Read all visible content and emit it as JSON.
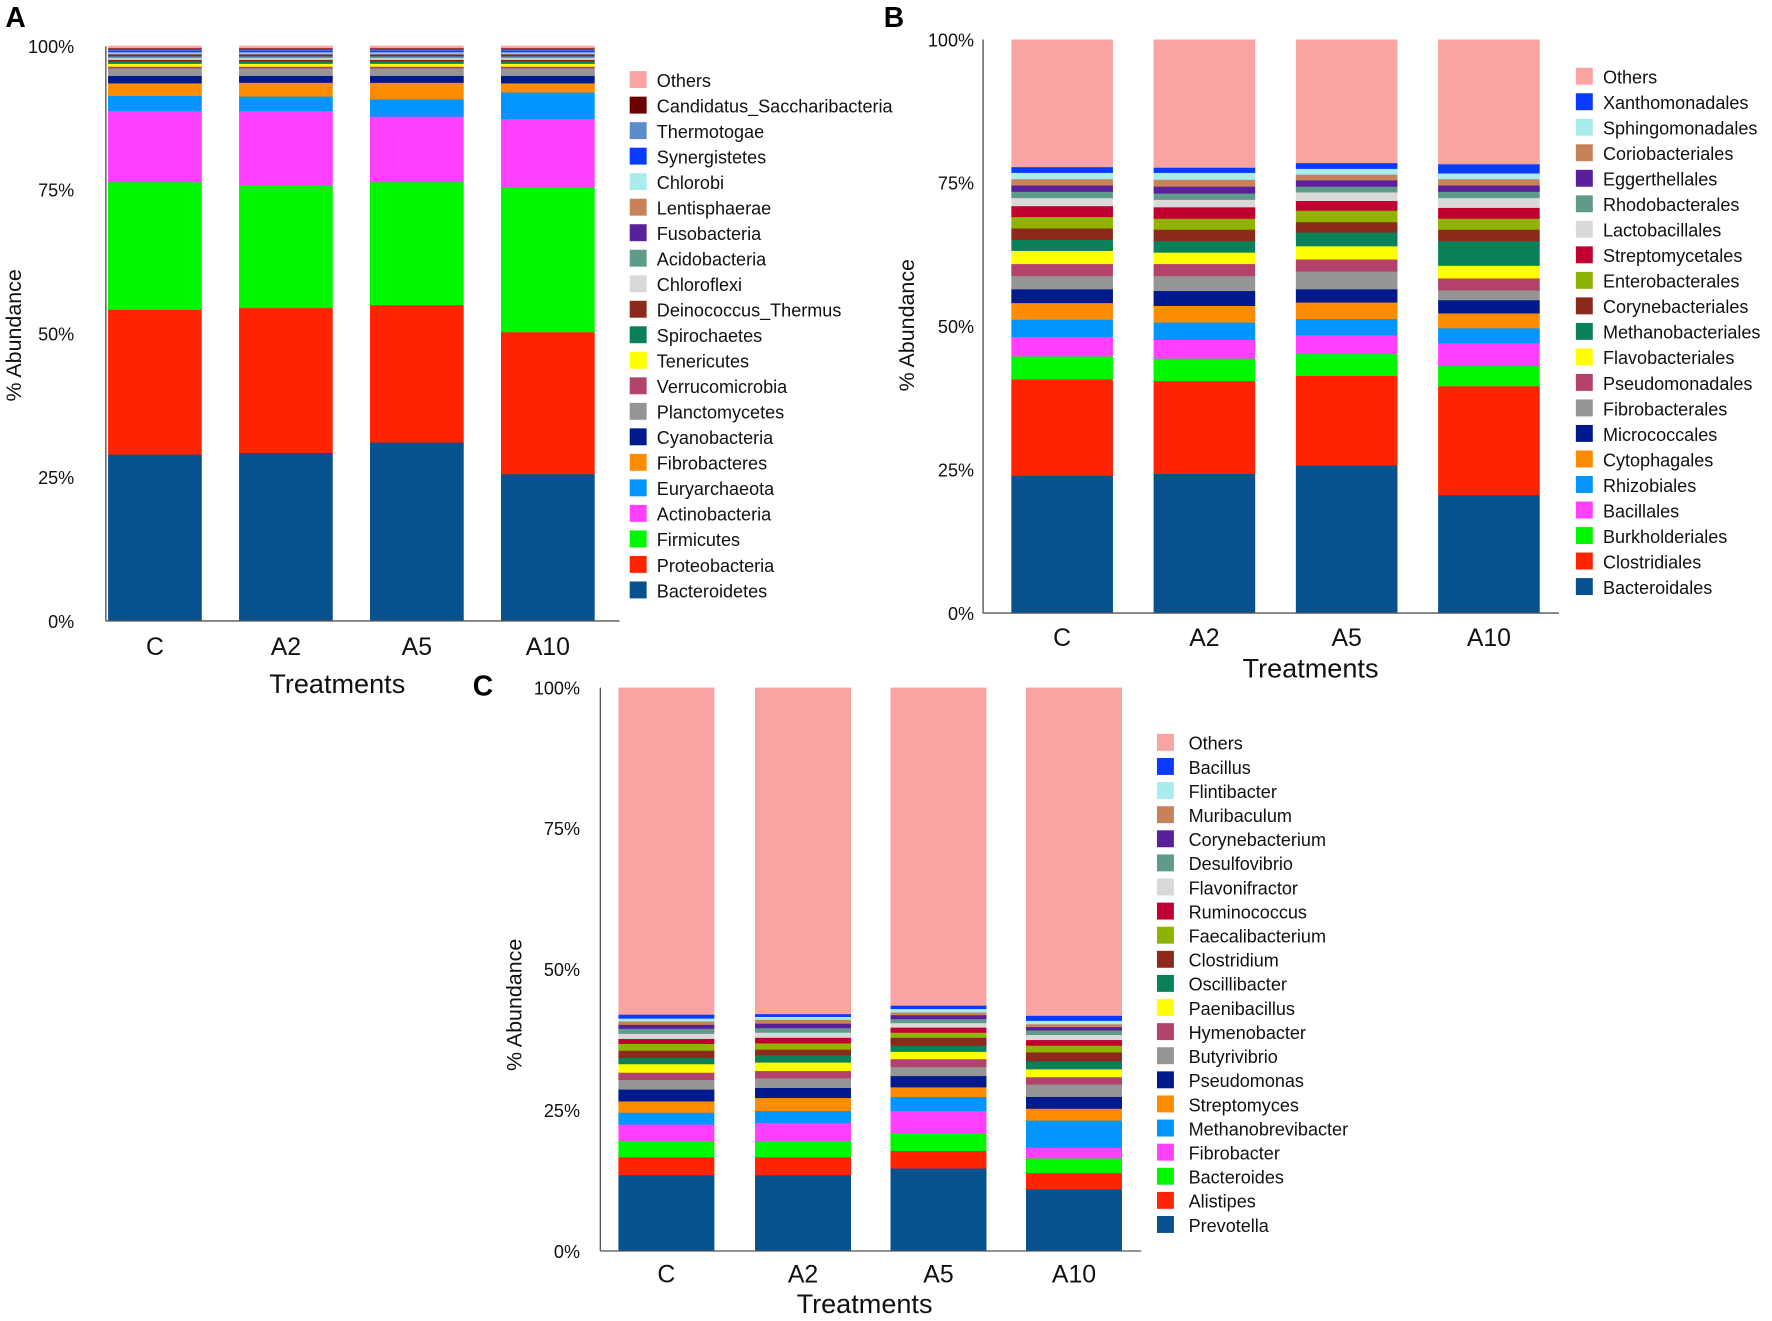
{
  "chart_data": [
    {
      "panel": "A",
      "type": "bar",
      "stacked": true,
      "categories": [
        "C",
        "A2",
        "A5",
        "A10"
      ],
      "xlabel": "Treatments",
      "ylabel": "% Abundance",
      "ylim": [
        0,
        100
      ],
      "yticks": [
        "0%",
        "25%",
        "50%",
        "75%",
        "100%"
      ],
      "legend_position": "right",
      "series": [
        {
          "name": "Bacteroidetes",
          "color": "#08518f",
          "values": [
            29.0,
            29.3,
            31.1,
            25.6
          ]
        },
        {
          "name": "Proteobacteria",
          "color": "#ff2400",
          "values": [
            25.2,
            25.2,
            23.9,
            24.7
          ]
        },
        {
          "name": "Firmicutes",
          "color": "#00f700",
          "values": [
            22.2,
            21.3,
            21.4,
            25.2
          ]
        },
        {
          "name": "Actinobacteria",
          "color": "#ff40ff",
          "values": [
            12.4,
            13.0,
            11.4,
            11.9
          ]
        },
        {
          "name": "Euryarchaeota",
          "color": "#0095ff",
          "values": [
            2.6,
            2.5,
            3.0,
            4.6
          ]
        },
        {
          "name": "Fibrobacteres",
          "color": "#ff8c00",
          "values": [
            2.2,
            2.4,
            2.9,
            1.6
          ]
        },
        {
          "name": "Cyanobacteria",
          "color": "#00198c",
          "values": [
            1.3,
            1.2,
            1.2,
            1.3
          ]
        },
        {
          "name": "Planctomycetes",
          "color": "#959595",
          "values": [
            1.3,
            1.3,
            1.3,
            1.3
          ]
        },
        {
          "name": "Verrucomicrobia",
          "color": "#b2416b",
          "values": [
            0.3,
            0.3,
            0.3,
            0.3
          ]
        },
        {
          "name": "Tenericutes",
          "color": "#ffff00",
          "values": [
            0.5,
            0.5,
            0.5,
            0.5
          ]
        },
        {
          "name": "Spirochaetes",
          "color": "#0a8059",
          "values": [
            0.4,
            0.4,
            0.4,
            0.4
          ]
        },
        {
          "name": "Deinococcus_Thermus",
          "color": "#8b2a1a",
          "values": [
            0.3,
            0.3,
            0.3,
            0.3
          ]
        },
        {
          "name": "Chloroflexi",
          "color": "#d9d9d9",
          "values": [
            0.3,
            0.3,
            0.3,
            0.3
          ]
        },
        {
          "name": "Acidobacteria",
          "color": "#5f9a8a",
          "values": [
            0.3,
            0.3,
            0.3,
            0.3
          ]
        },
        {
          "name": "Fusobacteria",
          "color": "#5a1f9a",
          "values": [
            0.3,
            0.3,
            0.3,
            0.3
          ]
        },
        {
          "name": "Lentisphaerae",
          "color": "#c8825a",
          "values": [
            0.2,
            0.2,
            0.2,
            0.2
          ]
        },
        {
          "name": "Chlorobi",
          "color": "#a8ecec",
          "values": [
            0.2,
            0.2,
            0.2,
            0.2
          ]
        },
        {
          "name": "Synergistetes",
          "color": "#0a3cff",
          "values": [
            0.3,
            0.3,
            0.3,
            0.3
          ]
        },
        {
          "name": "Thermotogae",
          "color": "#5b8ec8",
          "values": [
            0.2,
            0.2,
            0.2,
            0.2
          ]
        },
        {
          "name": "Candidatus_Saccharibacteria",
          "color": "#6b0000",
          "values": [
            0.2,
            0.2,
            0.2,
            0.2
          ]
        },
        {
          "name": "Others",
          "color": "#f9a3a3",
          "values": [
            0.4,
            0.4,
            0.4,
            0.4
          ]
        }
      ]
    },
    {
      "panel": "B",
      "type": "bar",
      "stacked": true,
      "categories": [
        "C",
        "A2",
        "A5",
        "A10"
      ],
      "xlabel": "Treatments",
      "ylabel": "% Abundance",
      "ylim": [
        0,
        100
      ],
      "yticks": [
        "0%",
        "25%",
        "50%",
        "75%",
        "100%"
      ],
      "legend_position": "right",
      "series": [
        {
          "name": "Bacteroidales",
          "color": "#08518f",
          "values": [
            24.0,
            24.3,
            25.8,
            20.6
          ]
        },
        {
          "name": "Clostridiales",
          "color": "#ff2400",
          "values": [
            16.8,
            16.2,
            15.6,
            19.0
          ]
        },
        {
          "name": "Burkholderiales",
          "color": "#00f700",
          "values": [
            4.0,
            3.9,
            3.8,
            3.5
          ]
        },
        {
          "name": "Bacillales",
          "color": "#ff40ff",
          "values": [
            3.4,
            3.3,
            3.3,
            4.0
          ]
        },
        {
          "name": "Rhizobiales",
          "color": "#0095ff",
          "values": [
            3.0,
            3.0,
            2.8,
            2.6
          ]
        },
        {
          "name": "Cytophagales",
          "color": "#ff8c00",
          "values": [
            2.9,
            2.9,
            2.9,
            2.6
          ]
        },
        {
          "name": "Micrococcales",
          "color": "#00198c",
          "values": [
            2.4,
            2.6,
            2.3,
            2.3
          ]
        },
        {
          "name": "Fibrobacterales",
          "color": "#959595",
          "values": [
            2.3,
            2.6,
            3.1,
            1.7
          ]
        },
        {
          "name": "Pseudomonadales",
          "color": "#b2416b",
          "values": [
            2.1,
            2.1,
            2.1,
            2.1
          ]
        },
        {
          "name": "Flavobacteriales",
          "color": "#ffff00",
          "values": [
            2.3,
            2.0,
            2.3,
            2.2
          ]
        },
        {
          "name": "Methanobacteriales",
          "color": "#0a8059",
          "values": [
            1.9,
            2.0,
            2.4,
            4.3
          ]
        },
        {
          "name": "Corynebacteriales",
          "color": "#8b2a1a",
          "values": [
            2.0,
            2.0,
            1.8,
            2.0
          ]
        },
        {
          "name": "Enterobacterales",
          "color": "#8fb300",
          "values": [
            2.0,
            1.9,
            2.0,
            1.9
          ]
        },
        {
          "name": "Streptomycetales",
          "color": "#c00030",
          "values": [
            1.9,
            2.0,
            1.7,
            1.9
          ]
        },
        {
          "name": "Lactobacillales",
          "color": "#d9d9d9",
          "values": [
            1.4,
            1.3,
            1.5,
            1.7
          ]
        },
        {
          "name": "Rhodobacterales",
          "color": "#5f9a8a",
          "values": [
            1.1,
            1.1,
            1.0,
            1.1
          ]
        },
        {
          "name": "Eggerthellales",
          "color": "#5a1f9a",
          "values": [
            1.1,
            1.2,
            1.1,
            1.1
          ]
        },
        {
          "name": "Coriobacteriales",
          "color": "#c8825a",
          "values": [
            1.1,
            1.2,
            1.0,
            1.1
          ]
        },
        {
          "name": "Sphingomonadales",
          "color": "#a8ecec",
          "values": [
            1.1,
            1.2,
            1.0,
            1.0
          ]
        },
        {
          "name": "Xanthomonadales",
          "color": "#0a3cff",
          "values": [
            1.0,
            0.9,
            1.0,
            1.6
          ]
        },
        {
          "name": "Others",
          "color": "#f9a3a3",
          "values": [
            22.2,
            22.3,
            21.5,
            21.7
          ]
        }
      ]
    },
    {
      "panel": "C",
      "type": "bar",
      "stacked": true,
      "categories": [
        "C",
        "A2",
        "A5",
        "A10"
      ],
      "xlabel": "Treatments",
      "ylabel": "% Abundance",
      "ylim": [
        0,
        100
      ],
      "yticks": [
        "0%",
        "25%",
        "50%",
        "75%",
        "100%"
      ],
      "legend_position": "right",
      "series": [
        {
          "name": "Prevotella",
          "color": "#08518f",
          "values": [
            13.5,
            13.5,
            14.7,
            11.0
          ]
        },
        {
          "name": "Alistipes",
          "color": "#ff2400",
          "values": [
            3.2,
            3.2,
            3.1,
            2.9
          ]
        },
        {
          "name": "Bacteroides",
          "color": "#00f700",
          "values": [
            2.9,
            2.9,
            3.2,
            2.6
          ]
        },
        {
          "name": "Fibrobacter",
          "color": "#ff40ff",
          "values": [
            2.9,
            3.2,
            3.9,
            1.9
          ]
        },
        {
          "name": "Methanobrevibacter",
          "color": "#0095ff",
          "values": [
            2.1,
            2.1,
            2.5,
            4.8
          ]
        },
        {
          "name": "Streptomyces",
          "color": "#ff8c00",
          "values": [
            2.0,
            2.3,
            1.7,
            2.1
          ]
        },
        {
          "name": "Pseudomonas",
          "color": "#00198c",
          "values": [
            2.1,
            1.8,
            2.0,
            2.1
          ]
        },
        {
          "name": "Butyrivibrio",
          "color": "#959595",
          "values": [
            1.7,
            1.7,
            1.6,
            2.2
          ]
        },
        {
          "name": "Hymenobacter",
          "color": "#b2416b",
          "values": [
            1.3,
            1.3,
            1.4,
            1.3
          ]
        },
        {
          "name": "Paenibacillus",
          "color": "#ffff00",
          "values": [
            1.5,
            1.5,
            1.3,
            1.4
          ]
        },
        {
          "name": "Oscillibacter",
          "color": "#0a8059",
          "values": [
            1.1,
            1.3,
            1.1,
            1.4
          ]
        },
        {
          "name": "Clostridium",
          "color": "#8b2a1a",
          "values": [
            1.3,
            1.0,
            1.4,
            1.6
          ]
        },
        {
          "name": "Faecalibacterium",
          "color": "#8fb300",
          "values": [
            1.2,
            1.1,
            0.9,
            1.2
          ]
        },
        {
          "name": "Ruminococcus",
          "color": "#c00030",
          "values": [
            0.9,
            1.0,
            0.9,
            1.0
          ]
        },
        {
          "name": "Flavonifractor",
          "color": "#d9d9d9",
          "values": [
            0.9,
            0.9,
            0.8,
            0.9
          ]
        },
        {
          "name": "Desulfovibrio",
          "color": "#5f9a8a",
          "values": [
            0.9,
            0.8,
            0.7,
            0.8
          ]
        },
        {
          "name": "Corynebacterium",
          "color": "#5a1f9a",
          "values": [
            0.7,
            0.8,
            0.7,
            0.6
          ]
        },
        {
          "name": "Muribaculum",
          "color": "#c8825a",
          "values": [
            0.6,
            0.7,
            0.5,
            0.5
          ]
        },
        {
          "name": "Flintibacter",
          "color": "#a8ecec",
          "values": [
            0.5,
            0.5,
            0.6,
            0.6
          ]
        },
        {
          "name": "Bacillus",
          "color": "#0a3cff",
          "values": [
            0.7,
            0.5,
            0.6,
            0.9
          ]
        },
        {
          "name": "Others",
          "color": "#f9a3a3",
          "values": [
            58.0,
            57.9,
            56.4,
            58.2
          ]
        }
      ]
    }
  ]
}
